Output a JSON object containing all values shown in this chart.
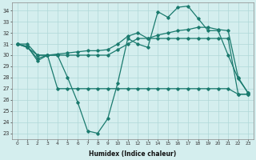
{
  "xlabel": "Humidex (Indice chaleur)",
  "x": [
    0,
    1,
    2,
    3,
    4,
    5,
    6,
    7,
    8,
    9,
    10,
    11,
    12,
    13,
    14,
    15,
    16,
    17,
    18,
    19,
    20,
    21,
    22,
    23
  ],
  "line_dip": [
    31.0,
    30.8,
    29.5,
    30.0,
    30.0,
    28.0,
    25.8,
    23.2,
    23.0,
    24.3,
    27.5,
    31.5,
    31.0,
    30.7,
    33.9,
    33.4,
    34.3,
    34.4,
    33.3,
    32.2,
    32.2,
    30.0,
    27.9,
    26.6
  ],
  "line_upper": [
    31.0,
    30.7,
    29.7,
    30.0,
    30.1,
    30.2,
    30.3,
    30.4,
    30.4,
    30.5,
    31.0,
    31.7,
    32.0,
    31.5,
    31.8,
    32.0,
    32.2,
    32.3,
    32.5,
    32.5,
    32.3,
    32.2,
    28.0,
    26.6
  ],
  "line_mid1": [
    31.0,
    30.7,
    30.0,
    30.0,
    30.0,
    30.0,
    30.0,
    30.0,
    30.0,
    30.0,
    30.5,
    31.0,
    31.5,
    31.5,
    31.5,
    31.5,
    31.5,
    31.5,
    31.5,
    31.5,
    31.5,
    31.5,
    26.5,
    26.5
  ],
  "line_flat": [
    31.0,
    31.0,
    30.0,
    30.0,
    27.0,
    27.0,
    27.0,
    27.0,
    27.0,
    27.0,
    27.0,
    27.0,
    27.0,
    27.0,
    27.0,
    27.0,
    27.0,
    27.0,
    27.0,
    27.0,
    27.0,
    27.0,
    26.5,
    26.5
  ],
  "color": "#1a7a6e",
  "bg_color": "#d4eeee",
  "grid_color": "#afd8d8",
  "ylim": [
    22.5,
    34.7
  ],
  "yticks": [
    23,
    24,
    25,
    26,
    27,
    28,
    29,
    30,
    31,
    32,
    33,
    34
  ]
}
